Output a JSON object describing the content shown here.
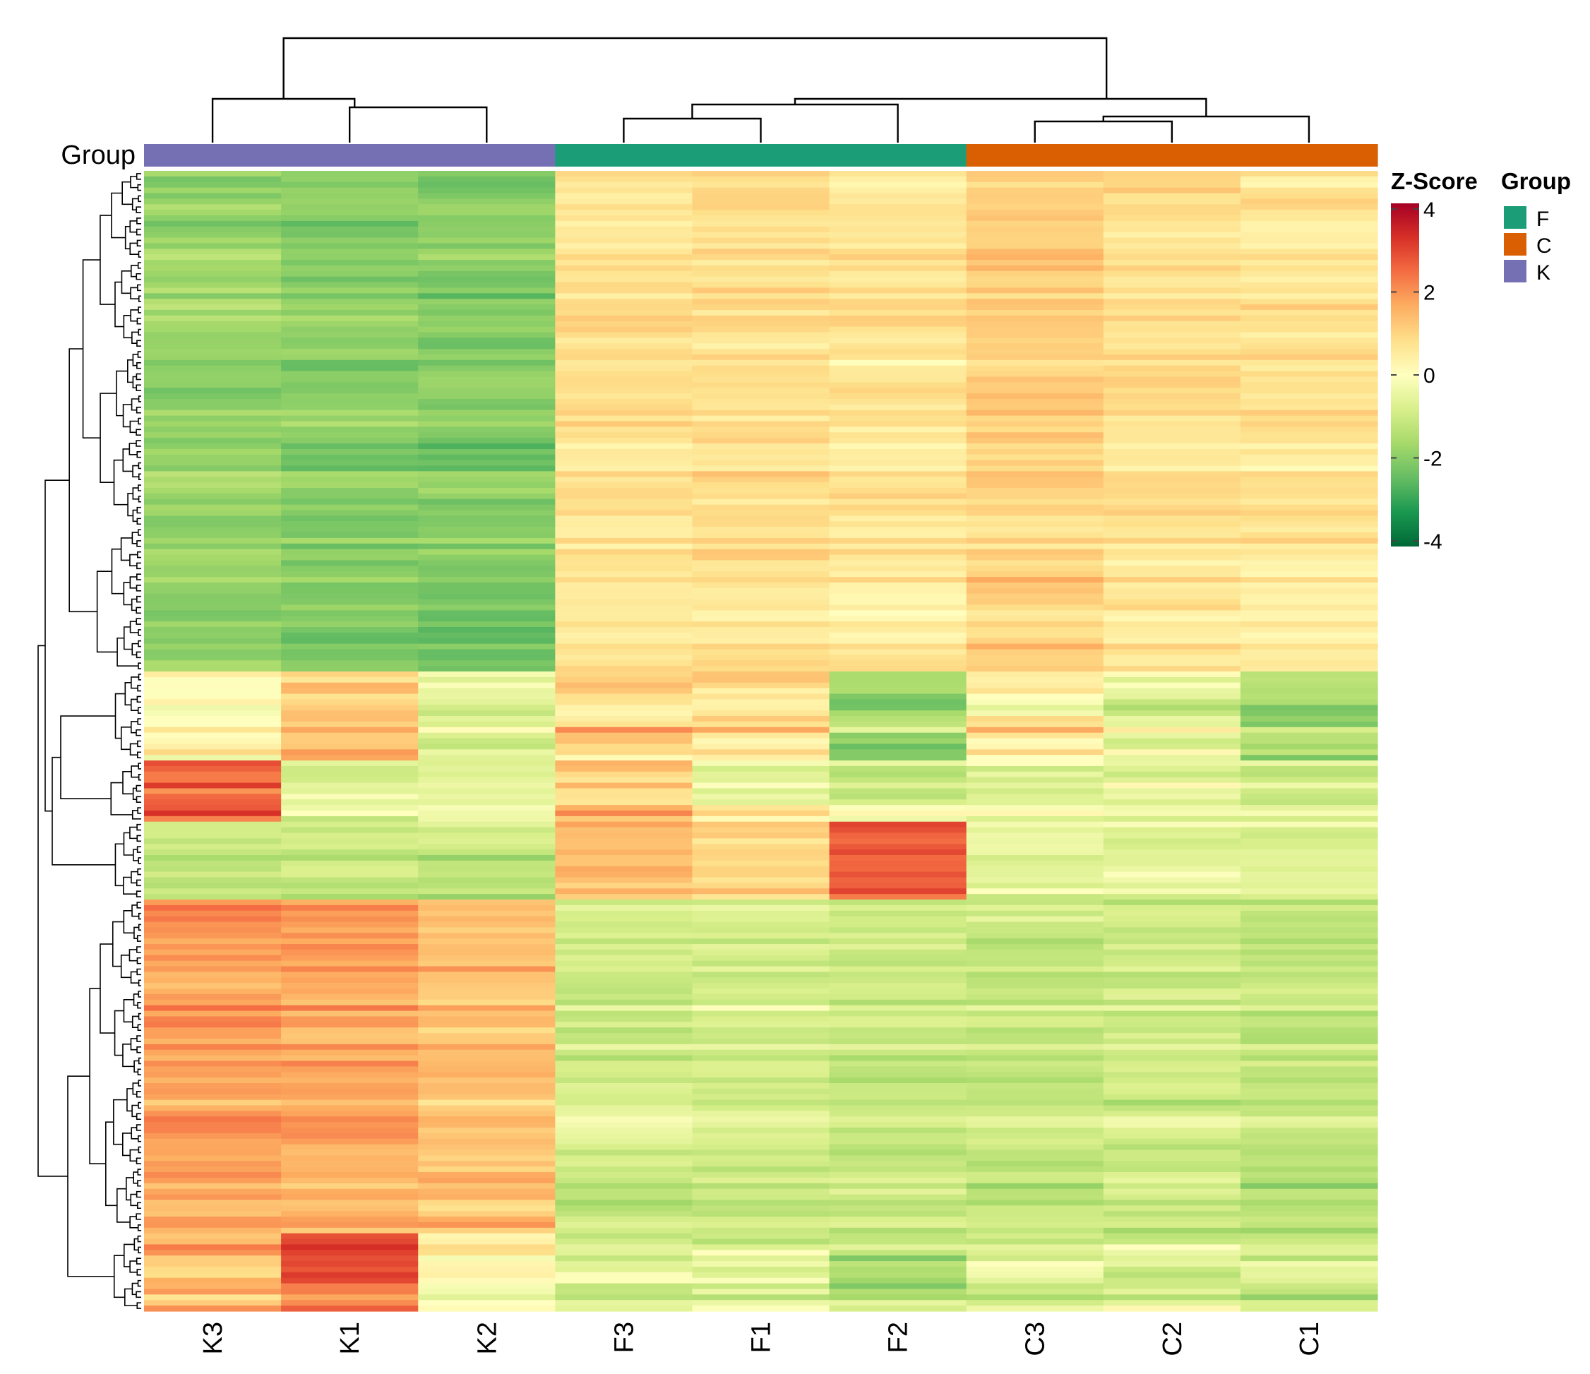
{
  "chart_data": {
    "type": "heatmap",
    "title": "",
    "columns": [
      "K3",
      "K1",
      "K2",
      "F3",
      "F1",
      "F2",
      "C3",
      "C2",
      "C1"
    ],
    "column_groups": [
      "K",
      "K",
      "K",
      "F",
      "F",
      "F",
      "C",
      "C",
      "C"
    ],
    "annotation_label": "Group",
    "colorbar": {
      "title": "Z-Score",
      "ticks": [
        "4",
        "2",
        "0",
        "-2",
        "-4"
      ],
      "range": [
        -4,
        4
      ]
    },
    "group_legend": {
      "title": "Group",
      "items": [
        {
          "label": "F",
          "color": "#1b9e77"
        },
        {
          "label": "C",
          "color": "#d95f02"
        },
        {
          "label": "K",
          "color": "#7570b3"
        }
      ]
    },
    "row_blocks": [
      {
        "rows": 90,
        "values": [
          -1.8,
          -2.0,
          -2.0,
          0.7,
          0.7,
          0.6,
          1.0,
          0.7,
          0.6
        ],
        "jitter": 0.45
      },
      {
        "rows": 16,
        "values": [
          0.2,
          1.4,
          -0.4,
          1.0,
          0.9,
          -1.5,
          0.4,
          -0.5,
          -1.5
        ],
        "jitter": 0.9
      },
      {
        "rows": 11,
        "values": [
          2.6,
          -0.6,
          -0.5,
          1.2,
          0.0,
          -0.8,
          -0.3,
          -0.2,
          -0.8
        ],
        "jitter": 0.7
      },
      {
        "rows": 14,
        "values": [
          -1.1,
          -1.1,
          -1.0,
          1.4,
          0.9,
          2.6,
          -0.6,
          -0.4,
          -0.6
        ],
        "jitter": 0.6
      },
      {
        "rows": 60,
        "values": [
          1.8,
          1.7,
          1.3,
          -0.9,
          -0.9,
          -1.0,
          -1.0,
          -1.0,
          -1.1
        ],
        "jitter": 0.5
      },
      {
        "rows": 14,
        "values": [
          1.2,
          2.3,
          0.3,
          -0.9,
          -0.6,
          -1.3,
          -0.8,
          -0.8,
          -1.2
        ],
        "jitter": 0.8
      }
    ],
    "row_dendrogram": true,
    "column_dendrogram": true
  },
  "colors": {
    "group_K": "#7570b3",
    "group_F": "#1b9e77",
    "group_C": "#d95f02",
    "scale": [
      "#006837",
      "#1a9850",
      "#66bd63",
      "#a6d96a",
      "#d9ef8b",
      "#ffffbf",
      "#fee08b",
      "#fdae61",
      "#f46d43",
      "#d73027",
      "#a50026"
    ]
  }
}
